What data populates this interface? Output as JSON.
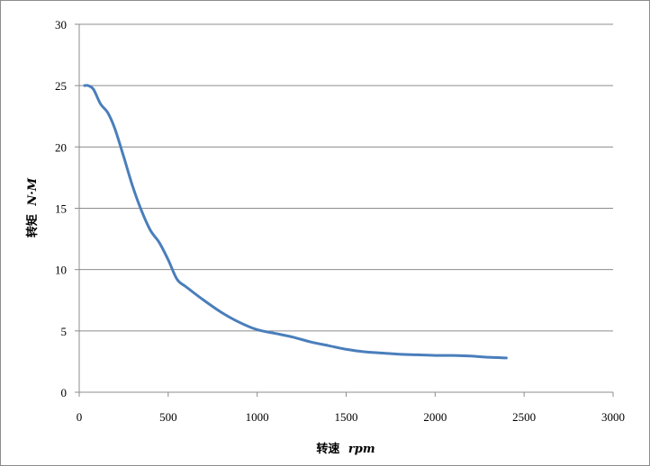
{
  "chart_data": {
    "type": "line",
    "title": "",
    "xlabel": "转速",
    "xlabel_unit": "rpm",
    "ylabel": "转矩",
    "ylabel_unit": "N·M",
    "xlim": [
      0,
      3000
    ],
    "ylim": [
      0,
      30
    ],
    "x_ticks": [
      "0",
      "500",
      "1000",
      "1500",
      "2000",
      "2500",
      "3000"
    ],
    "y_ticks": [
      "0",
      "5",
      "10",
      "15",
      "20",
      "25",
      "30"
    ],
    "grid": "horizontal",
    "legend": "none",
    "series": [
      {
        "color": "#4a7ebb",
        "x": [
          30,
          50,
          80,
          120,
          160,
          200,
          250,
          300,
          350,
          400,
          450,
          500,
          550,
          600,
          700,
          800,
          900,
          1000,
          1100,
          1200,
          1300,
          1400,
          1500,
          1600,
          1700,
          1800,
          1900,
          2000,
          2100,
          2200,
          2300,
          2400
        ],
        "y": [
          25,
          25,
          24.7,
          23.5,
          22.8,
          21.5,
          19.2,
          16.8,
          14.8,
          13.2,
          12.2,
          10.8,
          9.2,
          8.6,
          7.5,
          6.5,
          5.7,
          5.1,
          4.8,
          4.5,
          4.1,
          3.8,
          3.5,
          3.3,
          3.2,
          3.1,
          3.05,
          3.0,
          3.0,
          2.95,
          2.85,
          2.8
        ]
      }
    ]
  }
}
